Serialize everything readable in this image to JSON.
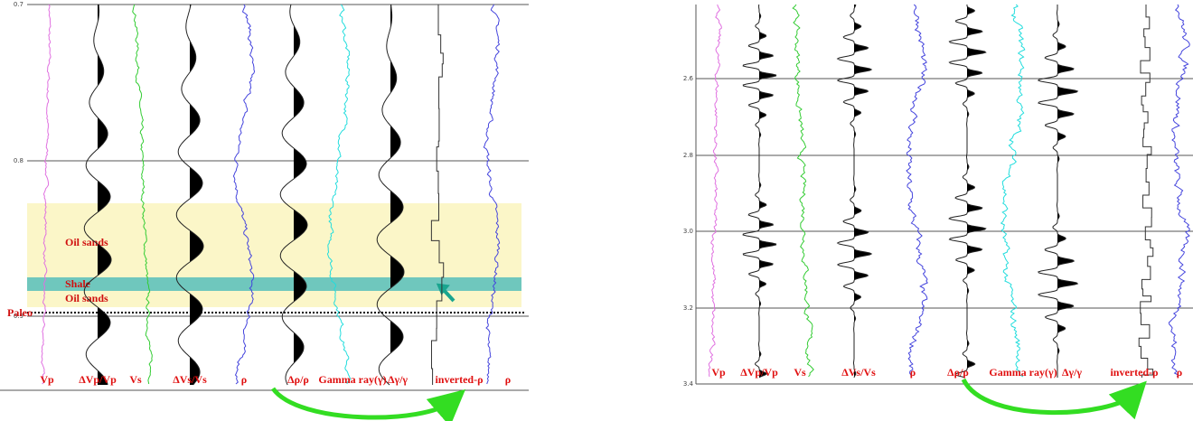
{
  "left_panel": {
    "depth_ticks": [
      "0.7",
      "0.8",
      "0.9"
    ],
    "annotations": [
      "Oil sands",
      "Shale",
      "Oil sands",
      "Paleo"
    ],
    "track_labels": [
      "Vp",
      "ΔVp/Vp",
      "Vs",
      "ΔVs/Vs",
      "ρ",
      "Δρ/ρ",
      "Gamma ray(γ)",
      "Δγ/γ",
      "inverted-ρ",
      "ρ"
    ]
  },
  "right_panel": {
    "depth_ticks": [
      "2.6",
      "2.8",
      "3.0",
      "3.2",
      "3.4"
    ],
    "track_labels": [
      "Vp",
      "ΔVp/Vp",
      "Vs",
      "ΔVs/Vs",
      "ρ",
      "Δρ/ρ",
      "Gamma ray(γ)",
      "Δγ/γ",
      "inverted-ρ",
      "ρ"
    ]
  }
}
